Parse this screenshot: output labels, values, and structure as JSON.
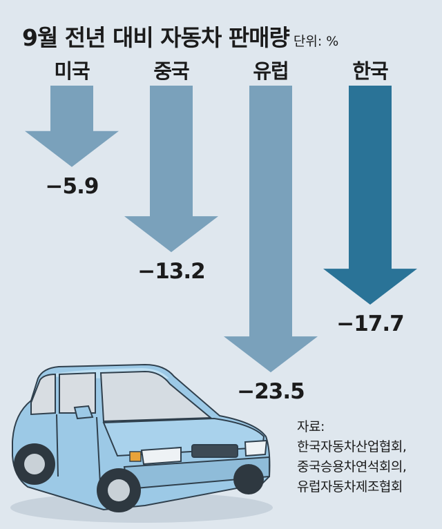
{
  "title": "9월 전년 대비 자동차 판매량",
  "unit": "단위: %",
  "chart_data": {
    "type": "bar",
    "orientation": "downward-arrows",
    "title": "9월 전년 대비 자동차 판매량",
    "unit": "%",
    "categories": [
      "미국",
      "중국",
      "유럽",
      "한국"
    ],
    "values": [
      -5.9,
      -13.2,
      -23.5,
      -17.7
    ],
    "value_labels": [
      "−5.9",
      "−13.2",
      "−23.5",
      "−17.7"
    ],
    "colors": [
      "#7aa1bb",
      "#7aa1bb",
      "#7aa1bb",
      "#2a7397"
    ],
    "highlight": "한국"
  },
  "source": {
    "label": "자료:",
    "lines": [
      "한국자동차산업협회,",
      "중국승용차연석회의,",
      "유럽자동차제조협회"
    ]
  }
}
